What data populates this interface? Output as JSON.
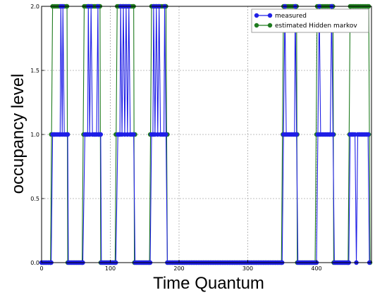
{
  "chart_data": {
    "type": "line",
    "xlabel": "Time Quantum",
    "ylabel": "occupancy level",
    "xlim": [
      0,
      480
    ],
    "ylim": [
      0.0,
      2.0
    ],
    "x_ticks": [
      0,
      100,
      200,
      300,
      400
    ],
    "x_tick_labels": [
      "0",
      "100",
      "200",
      "300",
      "400"
    ],
    "y_ticks": [
      0.0,
      0.5,
      1.0,
      1.5,
      2.0
    ],
    "y_tick_labels": [
      "0.0",
      "0.5",
      "1.0",
      "1.5",
      "2.0"
    ],
    "grid": true,
    "legend_position": "top-right",
    "series": [
      {
        "name": "measured",
        "color": "#1f1fe6",
        "segments": [
          [
            0,
            0
          ],
          [
            14,
            0
          ],
          [
            16,
            1
          ],
          [
            27,
            1
          ],
          [
            28,
            2
          ],
          [
            30,
            1
          ],
          [
            31,
            2
          ],
          [
            33,
            1
          ],
          [
            38,
            1
          ],
          [
            39,
            0
          ],
          [
            60,
            0
          ],
          [
            63,
            1
          ],
          [
            67,
            1
          ],
          [
            68,
            2
          ],
          [
            70,
            1
          ],
          [
            72,
            2
          ],
          [
            74,
            1
          ],
          [
            78,
            1
          ],
          [
            80,
            1
          ],
          [
            82,
            2
          ],
          [
            83,
            1
          ],
          [
            86,
            1
          ],
          [
            87,
            0
          ],
          [
            108,
            0
          ],
          [
            111,
            1
          ],
          [
            114,
            1
          ],
          [
            115,
            2
          ],
          [
            117,
            1
          ],
          [
            119,
            2
          ],
          [
            121,
            1
          ],
          [
            123,
            2
          ],
          [
            125,
            1
          ],
          [
            127,
            2
          ],
          [
            129,
            1
          ],
          [
            134,
            1
          ],
          [
            136,
            0
          ],
          [
            158,
            0
          ],
          [
            160,
            1
          ],
          [
            162,
            1
          ],
          [
            163,
            2
          ],
          [
            165,
            1
          ],
          [
            167,
            2
          ],
          [
            169,
            1
          ],
          [
            171,
            2
          ],
          [
            173,
            1
          ],
          [
            178,
            1
          ],
          [
            179,
            2
          ],
          [
            181,
            1
          ],
          [
            183,
            0
          ],
          [
            350,
            0
          ],
          [
            352,
            1
          ],
          [
            354,
            2
          ],
          [
            356,
            1
          ],
          [
            368,
            1
          ],
          [
            369,
            2
          ],
          [
            371,
            1
          ],
          [
            373,
            0
          ],
          [
            400,
            0
          ],
          [
            402,
            1
          ],
          [
            404,
            2
          ],
          [
            406,
            1
          ],
          [
            420,
            1
          ],
          [
            422,
            2
          ],
          [
            424,
            1
          ],
          [
            426,
            0
          ],
          [
            447,
            0
          ],
          [
            449,
            1
          ],
          [
            456,
            1
          ],
          [
            458,
            0
          ],
          [
            460,
            1
          ],
          [
            475,
            1
          ],
          [
            477,
            0
          ]
        ]
      },
      {
        "name": "estimated Hidden markov",
        "color": "#1e7b1e",
        "segments": [
          [
            0,
            0
          ],
          [
            13,
            0
          ],
          [
            16,
            2
          ],
          [
            37,
            2
          ],
          [
            38,
            0
          ],
          [
            59,
            0
          ],
          [
            62,
            2
          ],
          [
            85,
            2
          ],
          [
            86,
            0
          ],
          [
            107,
            0
          ],
          [
            110,
            2
          ],
          [
            134,
            2
          ],
          [
            135,
            0
          ],
          [
            157,
            0
          ],
          [
            160,
            2
          ],
          [
            181,
            2
          ],
          [
            183,
            0
          ],
          [
            349,
            0
          ],
          [
            352,
            2
          ],
          [
            371,
            2
          ],
          [
            372,
            0
          ],
          [
            398,
            0
          ],
          [
            401,
            2
          ],
          [
            424,
            2
          ],
          [
            425,
            0
          ],
          [
            446,
            0
          ],
          [
            449,
            2
          ],
          [
            476,
            2
          ],
          [
            478,
            0
          ]
        ],
        "one_markers": [
          14,
          18,
          37,
          38,
          61,
          64,
          83,
          85,
          108,
          112,
          134,
          136,
          158,
          163,
          181,
          183,
          351,
          354,
          370,
          372,
          400,
          404,
          423,
          425,
          448,
          452,
          476
        ]
      }
    ]
  }
}
